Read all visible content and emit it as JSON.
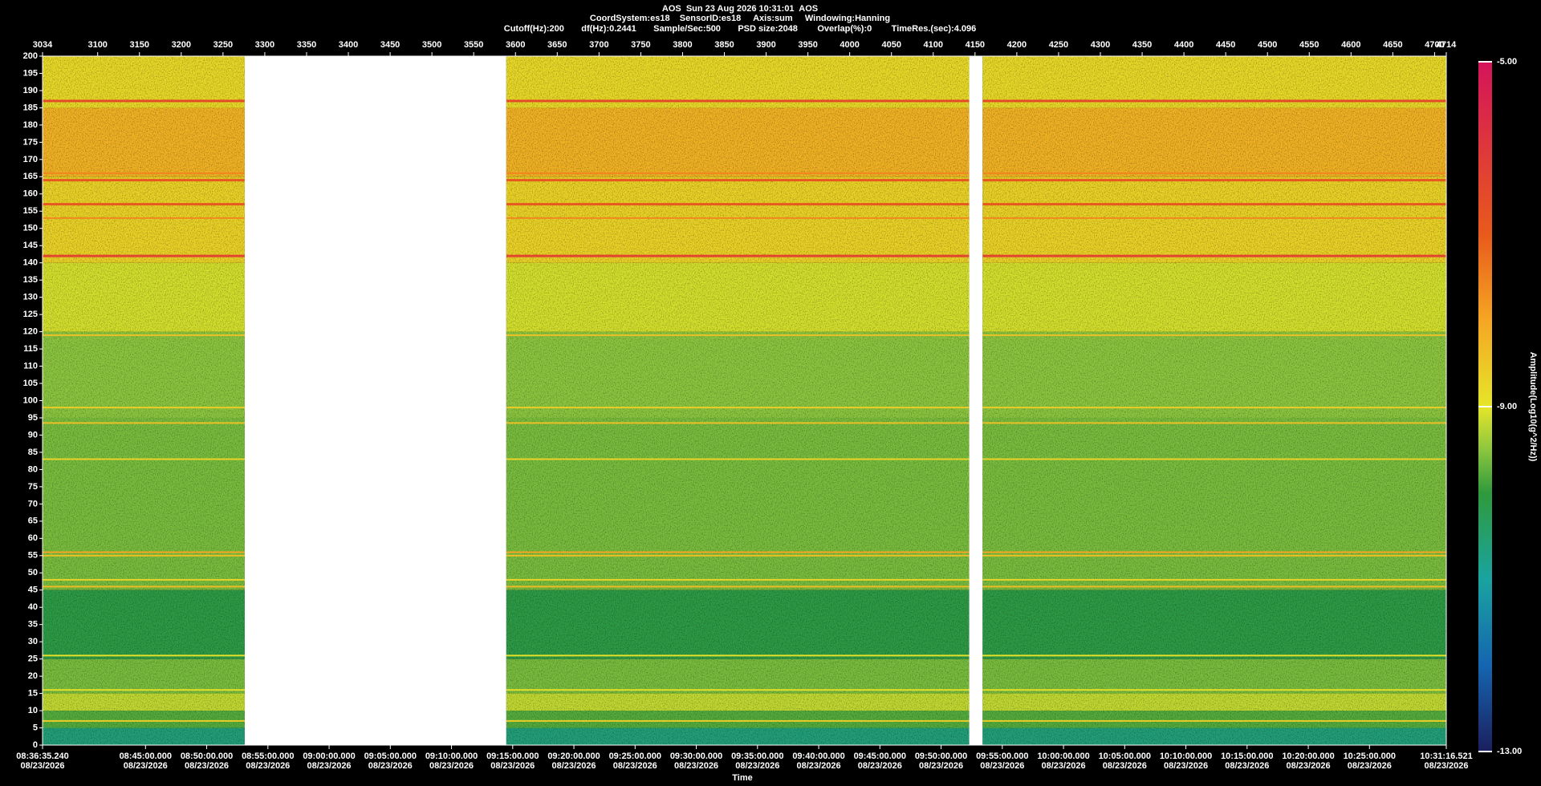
{
  "chart_data": {
    "type": "spectrogram",
    "title": "AOS  Sun 23 Aug 2026 10:31:01  AOS",
    "subtitle": "CoordSystem:es18    SensorID:es18     Axis:sum     Windowing:Hanning",
    "info": "Cutoff(Hz):200       df(Hz):0.2441       Sample/Sec:500       PSD size:2048        Overlap(%):0        TimeRes.(sec):4.096",
    "x2label": "Time",
    "colorbar_label": "Amplitude(Log10(g^2/Hz))",
    "xlim": [
      3034,
      4714
    ],
    "xticks": [
      3034,
      3100,
      3150,
      3200,
      3250,
      3300,
      3350,
      3400,
      3450,
      3500,
      3550,
      3600,
      3650,
      3700,
      3750,
      3800,
      3850,
      3900,
      3950,
      4000,
      4050,
      4100,
      4150,
      4200,
      4250,
      4300,
      4350,
      4400,
      4450,
      4500,
      4550,
      4600,
      4650,
      4700,
      4714
    ],
    "x2lim": [
      "2026-08-23T08:36:35.240",
      "2026-08-23T10:31:16.521"
    ],
    "x2ticks": [
      {
        "value": "2026-08-23T08:36:35.240",
        "label": "08:36:35.240",
        "date": "08/23/2026"
      },
      {
        "value": "2026-08-23T08:45:00.000",
        "label": "08:45:00.000",
        "date": "08/23/2026"
      },
      {
        "value": "2026-08-23T08:50:00.000",
        "label": "08:50:00.000",
        "date": "08/23/2026"
      },
      {
        "value": "2026-08-23T08:55:00.000",
        "label": "08:55:00.000",
        "date": "08/23/2026"
      },
      {
        "value": "2026-08-23T09:00:00.000",
        "label": "09:00:00.000",
        "date": "08/23/2026"
      },
      {
        "value": "2026-08-23T09:05:00.000",
        "label": "09:05:00.000",
        "date": "08/23/2026"
      },
      {
        "value": "2026-08-23T09:10:00.000",
        "label": "09:10:00.000",
        "date": "08/23/2026"
      },
      {
        "value": "2026-08-23T09:15:00.000",
        "label": "09:15:00.000",
        "date": "08/23/2026"
      },
      {
        "value": "2026-08-23T09:20:00.000",
        "label": "09:20:00.000",
        "date": "08/23/2026"
      },
      {
        "value": "2026-08-23T09:25:00.000",
        "label": "09:25:00.000",
        "date": "08/23/2026"
      },
      {
        "value": "2026-08-23T09:30:00.000",
        "label": "09:30:00.000",
        "date": "08/23/2026"
      },
      {
        "value": "2026-08-23T09:35:00.000",
        "label": "09:35:00.000",
        "date": "08/23/2026"
      },
      {
        "value": "2026-08-23T09:40:00.000",
        "label": "09:40:00.000",
        "date": "08/23/2026"
      },
      {
        "value": "2026-08-23T09:45:00.000",
        "label": "09:45:00.000",
        "date": "08/23/2026"
      },
      {
        "value": "2026-08-23T09:50:00.000",
        "label": "09:50:00.000",
        "date": "08/23/2026"
      },
      {
        "value": "2026-08-23T09:55:00.000",
        "label": "09:55:00.000",
        "date": "08/23/2026"
      },
      {
        "value": "2026-08-23T10:00:00.000",
        "label": "10:00:00.000",
        "date": "08/23/2026"
      },
      {
        "value": "2026-08-23T10:05:00.000",
        "label": "10:05:00.000",
        "date": "08/23/2026"
      },
      {
        "value": "2026-08-23T10:10:00.000",
        "label": "10:10:00.000",
        "date": "08/23/2026"
      },
      {
        "value": "2026-08-23T10:15:00.000",
        "label": "10:15:00.000",
        "date": "08/23/2026"
      },
      {
        "value": "2026-08-23T10:20:00.000",
        "label": "10:20:00.000",
        "date": "08/23/2026"
      },
      {
        "value": "2026-08-23T10:25:00.000",
        "label": "10:25:00.000",
        "date": "08/23/2026"
      },
      {
        "value": "2026-08-23T10:31:16.521",
        "label": "10:31:16.521",
        "date": "08/23/2026"
      }
    ],
    "ylim": [
      0,
      200
    ],
    "yticks": [
      0,
      5,
      10,
      15,
      20,
      25,
      30,
      35,
      40,
      45,
      50,
      55,
      60,
      65,
      70,
      75,
      80,
      85,
      90,
      95,
      100,
      105,
      110,
      115,
      120,
      125,
      130,
      135,
      140,
      145,
      150,
      155,
      160,
      165,
      170,
      175,
      180,
      185,
      190,
      195,
      200
    ],
    "clim": [
      -13,
      -5
    ],
    "cticks": [
      {
        "value": -5,
        "label": "-5.00"
      },
      {
        "value": -9,
        "label": "-9.00"
      },
      {
        "value": -13,
        "label": "-13.00"
      }
    ],
    "colorscale": [
      [
        -13,
        "#1b1f5e"
      ],
      [
        -12,
        "#1565b0"
      ],
      [
        -11,
        "#1aa3a0"
      ],
      [
        -10,
        "#2f9a3c"
      ],
      [
        -9.5,
        "#8cc63f"
      ],
      [
        -9,
        "#e6e629"
      ],
      [
        -8,
        "#f5a623"
      ],
      [
        -7,
        "#e85a1c"
      ],
      [
        -5,
        "#d4145a"
      ]
    ],
    "gaps": [
      [
        3276,
        3589
      ],
      [
        4143,
        4159
      ]
    ],
    "bands": [
      {
        "from": 0,
        "to": 5,
        "value": -10.6
      },
      {
        "from": 5,
        "to": 10,
        "value": -9.8
      },
      {
        "from": 10,
        "to": 15,
        "value": -9.2
      },
      {
        "from": 15,
        "to": 25,
        "value": -9.6
      },
      {
        "from": 25,
        "to": 45,
        "value": -10.1
      },
      {
        "from": 45,
        "to": 55,
        "value": -9.6
      },
      {
        "from": 55,
        "to": 95,
        "value": -9.6
      },
      {
        "from": 95,
        "to": 120,
        "value": -9.5
      },
      {
        "from": 120,
        "to": 140,
        "value": -9.1
      },
      {
        "from": 140,
        "to": 165,
        "value": -8.7
      },
      {
        "from": 165,
        "to": 185,
        "value": -8.2
      },
      {
        "from": 185,
        "to": 200,
        "value": -8.8
      }
    ],
    "lines": [
      {
        "freq": 187,
        "value": -6.6
      },
      {
        "freq": 166,
        "value": -7.6
      },
      {
        "freq": 164,
        "value": -6.9
      },
      {
        "freq": 157,
        "value": -6.9
      },
      {
        "freq": 153,
        "value": -7.6
      },
      {
        "freq": 142,
        "value": -6.4
      },
      {
        "freq": 119,
        "value": -8.4
      },
      {
        "freq": 98,
        "value": -8.6
      },
      {
        "freq": 93.5,
        "value": -8.4
      },
      {
        "freq": 83,
        "value": -8.7
      },
      {
        "freq": 56,
        "value": -8.0
      },
      {
        "freq": 55,
        "value": -8.4
      },
      {
        "freq": 48,
        "value": -8.7
      },
      {
        "freq": 46,
        "value": -8.3
      },
      {
        "freq": 26,
        "value": -8.9
      },
      {
        "freq": 16,
        "value": -8.9
      },
      {
        "freq": 7,
        "value": -8.6
      }
    ]
  }
}
